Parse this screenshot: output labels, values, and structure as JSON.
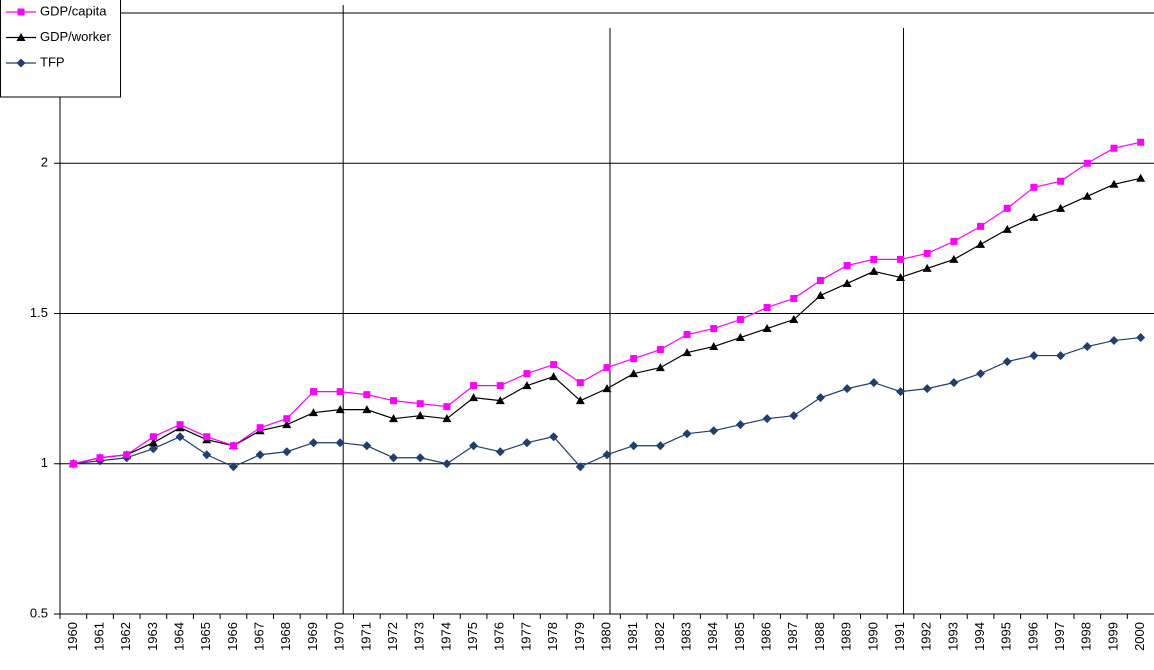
{
  "chart_data": {
    "type": "line",
    "categories": [
      "1960",
      "1961",
      "1962",
      "1963",
      "1964",
      "1965",
      "1966",
      "1967",
      "1968",
      "1969",
      "1970",
      "1971",
      "1972",
      "1973",
      "1974",
      "1975",
      "1976",
      "1977",
      "1978",
      "1979",
      "1980",
      "1981",
      "1982",
      "1983",
      "1984",
      "1985",
      "1986",
      "1987",
      "1988",
      "1989",
      "1990",
      "1991",
      "1992",
      "1993",
      "1994",
      "1995",
      "1996",
      "1997",
      "1998",
      "1999",
      "2000"
    ],
    "series": [
      {
        "name": "GDP/capita",
        "color": "#ff00ff",
        "marker": "square",
        "values": [
          1.0,
          1.02,
          1.03,
          1.09,
          1.13,
          1.09,
          1.06,
          1.12,
          1.15,
          1.24,
          1.24,
          1.23,
          1.21,
          1.2,
          1.19,
          1.26,
          1.26,
          1.3,
          1.33,
          1.27,
          1.32,
          1.35,
          1.38,
          1.43,
          1.45,
          1.48,
          1.52,
          1.55,
          1.61,
          1.66,
          1.68,
          1.68,
          1.7,
          1.74,
          1.79,
          1.85,
          1.92,
          1.94,
          2.0,
          2.05,
          2.07
        ]
      },
      {
        "name": "GDP/worker",
        "color": "#000000",
        "marker": "triangle",
        "values": [
          1.0,
          1.02,
          1.03,
          1.07,
          1.12,
          1.08,
          1.06,
          1.11,
          1.13,
          1.17,
          1.18,
          1.18,
          1.15,
          1.16,
          1.15,
          1.22,
          1.21,
          1.26,
          1.29,
          1.21,
          1.25,
          1.3,
          1.32,
          1.37,
          1.39,
          1.42,
          1.45,
          1.48,
          1.56,
          1.6,
          1.64,
          1.62,
          1.65,
          1.68,
          1.73,
          1.78,
          1.82,
          1.85,
          1.89,
          1.93,
          1.95
        ]
      },
      {
        "name": "TFP",
        "color": "#1f3f6e",
        "marker": "diamond",
        "values": [
          1.0,
          1.01,
          1.02,
          1.05,
          1.09,
          1.03,
          0.99,
          1.03,
          1.04,
          1.07,
          1.07,
          1.06,
          1.02,
          1.02,
          1.0,
          1.06,
          1.04,
          1.07,
          1.09,
          0.99,
          1.03,
          1.06,
          1.06,
          1.1,
          1.11,
          1.13,
          1.15,
          1.16,
          1.22,
          1.25,
          1.27,
          1.24,
          1.25,
          1.27,
          1.3,
          1.34,
          1.36,
          1.36,
          1.39,
          1.41,
          1.42
        ]
      }
    ],
    "ylim": [
      0.5,
      2.5
    ],
    "yticks": [
      0.5,
      1,
      1.5,
      2,
      2.5
    ],
    "grid": true,
    "legend": "top-left",
    "vertical_lines": [
      "1970",
      "1980",
      "1991"
    ]
  }
}
